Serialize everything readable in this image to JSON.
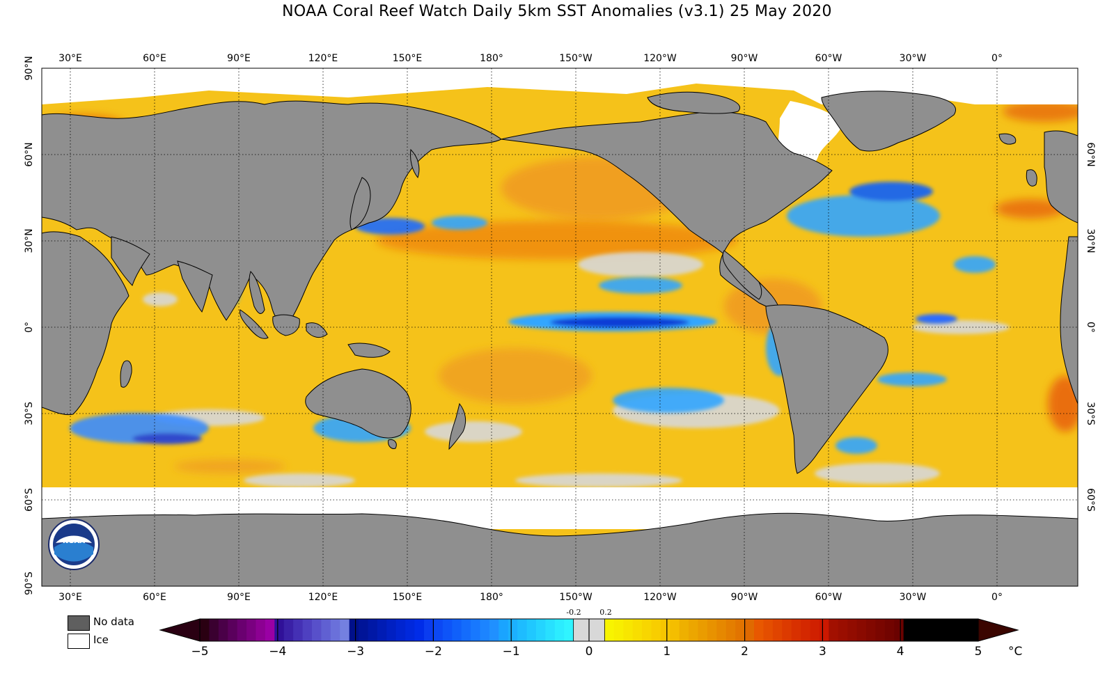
{
  "title": "NOAA Coral Reef Watch Daily 5km SST Anomalies  (v3.1)   25 May 2020",
  "colors": {
    "no_data": "#8f8f8f",
    "ice": "#ffffff",
    "ocean_base": "#f5c21a",
    "near_zero": "#d8d8d8",
    "cool": "#33a6ff",
    "cold": "#0a3cd6",
    "warm": "#f08a10",
    "hot": "#d43010"
  },
  "axes": {
    "lon_labels": [
      "30°E",
      "60°E",
      "90°E",
      "120°E",
      "150°E",
      "180°",
      "150°W",
      "120°W",
      "90°W",
      "60°W",
      "30°W",
      "0°"
    ],
    "lat_labels_left": [
      "90°N",
      "60°N",
      "30°N",
      "0°",
      "30°S",
      "60°S",
      "90°S"
    ],
    "lat_labels_right": [
      "60°N",
      "30°N",
      "0°",
      "30°S",
      "60°S"
    ]
  },
  "legend": {
    "no_data_label": "No data",
    "ice_label": "Ice"
  },
  "colorbar": {
    "ticks": [
      "−5",
      "−4",
      "−3",
      "−2",
      "−1",
      "0",
      "1",
      "2",
      "3",
      "4",
      "5"
    ],
    "small_ticks": [
      "-0.2",
      "0.2"
    ],
    "unit": "°C",
    "segments": [
      "#2a0012",
      "#3a0030",
      "#4a0048",
      "#5a005c",
      "#6a0070",
      "#7a0080",
      "#8c0092",
      "#9a00a4",
      "#301098",
      "#3a20a6",
      "#4430b4",
      "#4e40c0",
      "#5850ca",
      "#6060d2",
      "#6a70da",
      "#7480e0",
      "#00108a",
      "#001498",
      "#0018a6",
      "#001cb4",
      "#0020c2",
      "#0024d0",
      "#0028dc",
      "#002ce8",
      "#0a3cf0",
      "#0c48f4",
      "#0e54f8",
      "#1060fa",
      "#146cfc",
      "#1878fe",
      "#1c84ff",
      "#2090ff",
      "#1aa4ff",
      "#1cb0ff",
      "#1ebcff",
      "#20c8ff",
      "#24d4ff",
      "#28e0ff",
      "#2cecff",
      "#30f4ff",
      "#d8d8d8",
      "#d8d8d8",
      "#f8f400",
      "#f8ee00",
      "#f8e600",
      "#f8de00",
      "#f8d600",
      "#f8ce00",
      "#f6c600",
      "#f4be00",
      "#eeb000",
      "#eca600",
      "#ea9c00",
      "#e89200",
      "#e68800",
      "#e47e00",
      "#e27400",
      "#e06a00",
      "#e85800",
      "#e44e00",
      "#e04400",
      "#dc3a00",
      "#d83000",
      "#d42800",
      "#d02000",
      "#cc1800",
      "#a21000",
      "#9a0e00",
      "#920c00",
      "#8a0a00",
      "#820800",
      "#7a0600",
      "#720400",
      "#6a0200"
    ]
  }
}
